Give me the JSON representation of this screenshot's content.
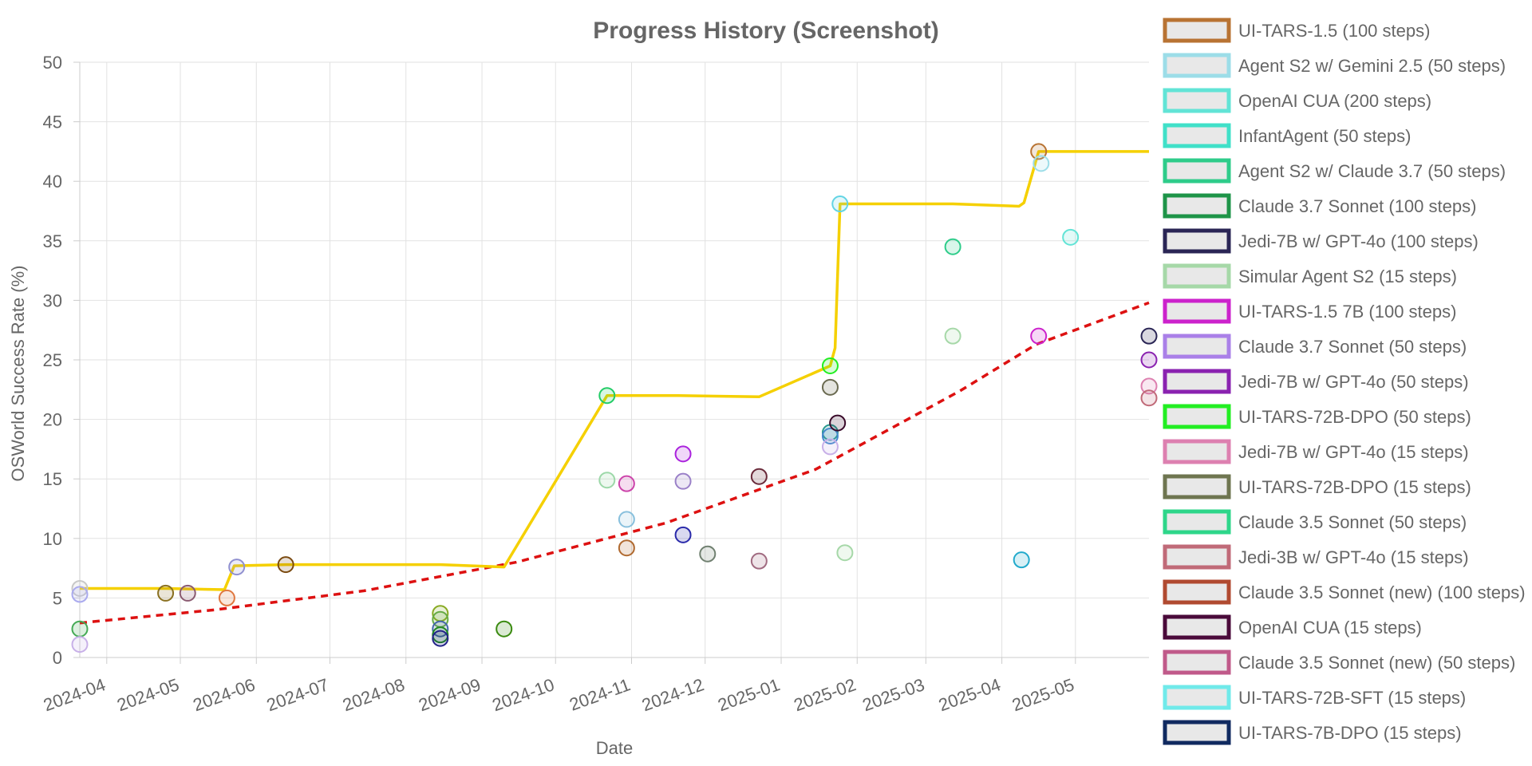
{
  "chart_data": {
    "type": "scatter",
    "title": "Progress History (Screenshot)",
    "xlabel": "Date",
    "ylabel": "OSWorld Success Rate (%)",
    "xlim": [
      "2024-03-21",
      "2025-05-31"
    ],
    "ylim": [
      0,
      50
    ],
    "x_ticks": [
      "2024-04",
      "2024-05",
      "2024-06",
      "2024-07",
      "2024-08",
      "2024-09",
      "2024-10",
      "2024-11",
      "2024-12",
      "2025-01",
      "2025-02",
      "2025-03",
      "2025-04",
      "2025-05"
    ],
    "y_ticks": [
      0,
      5,
      10,
      15,
      20,
      25,
      30,
      35,
      40,
      45,
      50
    ],
    "grid": true,
    "legend_position": "right",
    "legend": [
      {
        "label": "UI-TARS-1.5 (100 steps)",
        "color": "#b87333"
      },
      {
        "label": "Agent S2 w/ Gemini 2.5 (50 steps)",
        "color": "#9cdde8"
      },
      {
        "label": "OpenAI CUA (200 steps)",
        "color": "#62e4d6"
      },
      {
        "label": "InfantAgent (50 steps)",
        "color": "#40e0c8"
      },
      {
        "label": "Agent S2 w/ Claude 3.7 (50 steps)",
        "color": "#2ecc8a"
      },
      {
        "label": "Claude 3.7 Sonnet (100 steps)",
        "color": "#1e9448"
      },
      {
        "label": "Jedi-7B w/ GPT-4o (100 steps)",
        "color": "#2a2555"
      },
      {
        "label": "Simular Agent S2 (15 steps)",
        "color": "#a6d8a8"
      },
      {
        "label": "UI-TARS-1.5 7B (100 steps)",
        "color": "#cc22cc"
      },
      {
        "label": "Claude 3.7 Sonnet (50 steps)",
        "color": "#aa80e8"
      },
      {
        "label": "Jedi-7B w/ GPT-4o (50 steps)",
        "color": "#8a22b0"
      },
      {
        "label": "UI-TARS-72B-DPO (50 steps)",
        "color": "#22ee22"
      },
      {
        "label": "Jedi-7B w/ GPT-4o (15 steps)",
        "color": "#dd80b0"
      },
      {
        "label": "UI-TARS-72B-DPO (15 steps)",
        "color": "#6e7550"
      },
      {
        "label": "Claude 3.5 Sonnet (50 steps)",
        "color": "#2ed68a"
      },
      {
        "label": "Jedi-3B w/ GPT-4o (15 steps)",
        "color": "#c06a78"
      },
      {
        "label": "Claude 3.5 Sonnet (new) (100 steps)",
        "color": "#b04a30"
      },
      {
        "label": "OpenAI CUA (15 steps)",
        "color": "#4a0a3a"
      },
      {
        "label": "Claude 3.5 Sonnet (new) (50 steps)",
        "color": "#c05a8a"
      },
      {
        "label": "UI-TARS-72B-SFT (15 steps)",
        "color": "#70eaea"
      },
      {
        "label": "UI-TARS-7B-DPO (15 steps)",
        "color": "#102a60"
      }
    ],
    "best_line": {
      "color": "#f5d000",
      "points": [
        [
          "2024-03-21",
          5.8
        ],
        [
          "2024-04-25",
          5.8
        ],
        [
          "2024-05-19",
          5.7
        ],
        [
          "2024-05-23",
          7.7
        ],
        [
          "2024-06-13",
          7.8
        ],
        [
          "2024-08-15",
          7.8
        ],
        [
          "2024-09-10",
          7.6
        ],
        [
          "2024-10-22",
          22.0
        ],
        [
          "2024-11-20",
          22.0
        ],
        [
          "2024-12-23",
          21.9
        ],
        [
          "2025-01-21",
          24.5
        ],
        [
          "2025-01-23",
          26.0
        ],
        [
          "2025-01-25",
          38.1
        ],
        [
          "2025-03-12",
          38.1
        ],
        [
          "2025-04-08",
          37.9
        ],
        [
          "2025-04-10",
          38.2
        ],
        [
          "2025-04-16",
          42.5
        ],
        [
          "2025-05-31",
          42.5
        ]
      ]
    },
    "trend_line": {
      "color": "#dd1111",
      "points": [
        [
          "2024-03-21",
          2.9
        ],
        [
          "2024-05-15",
          4.0
        ],
        [
          "2024-07-15",
          5.6
        ],
        [
          "2024-09-15",
          8.0
        ],
        [
          "2024-11-15",
          11.3
        ],
        [
          "2025-01-15",
          15.8
        ],
        [
          "2025-03-15",
          22.4
        ],
        [
          "2025-04-15",
          26.3
        ],
        [
          "2025-05-31",
          29.8
        ]
      ]
    },
    "points": [
      {
        "x": "2024-03-21",
        "y": 5.8,
        "color": "#c8c8c8"
      },
      {
        "x": "2024-03-21",
        "y": 5.3,
        "color": "#aaaaee"
      },
      {
        "x": "2024-03-21",
        "y": 2.4,
        "color": "#44aa55"
      },
      {
        "x": "2024-03-21",
        "y": 1.1,
        "color": "#c8b0e8"
      },
      {
        "x": "2024-04-25",
        "y": 5.4,
        "color": "#8a7020"
      },
      {
        "x": "2024-05-04",
        "y": 5.4,
        "color": "#8a5a70"
      },
      {
        "x": "2024-05-20",
        "y": 5.0,
        "color": "#e07840"
      },
      {
        "x": "2024-05-24",
        "y": 7.6,
        "color": "#9090d0"
      },
      {
        "x": "2024-06-13",
        "y": 7.8,
        "color": "#7a4a10"
      },
      {
        "x": "2024-08-15",
        "y": 3.7,
        "color": "#88aa22"
      },
      {
        "x": "2024-08-15",
        "y": 3.2,
        "color": "#66aa44"
      },
      {
        "x": "2024-08-15",
        "y": 2.4,
        "color": "#4466aa"
      },
      {
        "x": "2024-08-15",
        "y": 1.9,
        "color": "#228822"
      },
      {
        "x": "2024-08-15",
        "y": 1.6,
        "color": "#222288"
      },
      {
        "x": "2024-09-10",
        "y": 2.4,
        "color": "#3a8a10"
      },
      {
        "x": "2024-10-22",
        "y": 22.0,
        "color": "#22cc66"
      },
      {
        "x": "2024-10-22",
        "y": 14.9,
        "color": "#9cd8a8"
      },
      {
        "x": "2024-10-30",
        "y": 14.6,
        "color": "#cc44aa"
      },
      {
        "x": "2024-10-30",
        "y": 11.6,
        "color": "#88c0dd"
      },
      {
        "x": "2024-10-30",
        "y": 9.2,
        "color": "#b06a30"
      },
      {
        "x": "2024-11-22",
        "y": 17.1,
        "color": "#aa22dd"
      },
      {
        "x": "2024-11-22",
        "y": 14.8,
        "color": "#9a80c8"
      },
      {
        "x": "2024-11-22",
        "y": 10.3,
        "color": "#2a2aaa"
      },
      {
        "x": "2024-12-02",
        "y": 8.7,
        "color": "#708070"
      },
      {
        "x": "2024-12-23",
        "y": 15.2,
        "color": "#6a2a3a"
      },
      {
        "x": "2024-12-23",
        "y": 8.1,
        "color": "#a06a80"
      },
      {
        "x": "2025-01-21",
        "y": 24.5,
        "color": "#22ee22"
      },
      {
        "x": "2025-01-21",
        "y": 22.7,
        "color": "#6a6a50"
      },
      {
        "x": "2025-01-21",
        "y": 18.9,
        "color": "#2a9a90"
      },
      {
        "x": "2025-01-21",
        "y": 18.6,
        "color": "#4488cc"
      },
      {
        "x": "2025-01-21",
        "y": 17.7,
        "color": "#c8b0e8"
      },
      {
        "x": "2025-01-24",
        "y": 19.7,
        "color": "#3a0a2a"
      },
      {
        "x": "2025-01-25",
        "y": 38.1,
        "color": "#62d4e4"
      },
      {
        "x": "2025-01-27",
        "y": 8.8,
        "color": "#a6d8a8"
      },
      {
        "x": "2025-03-12",
        "y": 34.5,
        "color": "#2ecc8a"
      },
      {
        "x": "2025-03-12",
        "y": 27.0,
        "color": "#a6d8a8"
      },
      {
        "x": "2025-04-09",
        "y": 8.2,
        "color": "#22aacc"
      },
      {
        "x": "2025-04-16",
        "y": 42.5,
        "color": "#b87333"
      },
      {
        "x": "2025-04-17",
        "y": 41.5,
        "color": "#9cdde8"
      },
      {
        "x": "2025-04-16",
        "y": 27.0,
        "color": "#cc22cc"
      },
      {
        "x": "2025-04-29",
        "y": 35.3,
        "color": "#62e4d6"
      },
      {
        "x": "2025-05-31",
        "y": 27.0,
        "color": "#2a2555"
      },
      {
        "x": "2025-05-31",
        "y": 25.0,
        "color": "#8a22b0"
      },
      {
        "x": "2025-05-31",
        "y": 22.8,
        "color": "#dd80b0"
      },
      {
        "x": "2025-05-31",
        "y": 21.8,
        "color": "#c06a78"
      }
    ]
  }
}
